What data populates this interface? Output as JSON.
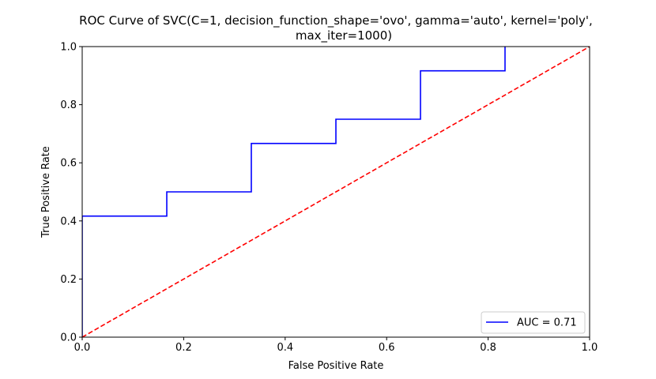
{
  "chart_data": {
    "type": "line",
    "title": [
      "ROC Curve of SVC(C=1, decision_function_shape='ovo', gamma='auto', kernel='poly',",
      "max_iter=1000)"
    ],
    "xlabel": "False Positive Rate",
    "ylabel": "True Positive Rate",
    "xlim": [
      0,
      1
    ],
    "ylim": [
      0,
      1
    ],
    "xticks": [
      0,
      0.2,
      0.4,
      0.6,
      0.8,
      1.0
    ],
    "yticks": [
      0,
      0.2,
      0.4,
      0.6,
      0.8,
      1.0
    ],
    "xtick_labels": [
      "0.0",
      "0.2",
      "0.4",
      "0.6",
      "0.8",
      "1.0"
    ],
    "ytick_labels": [
      "0.0",
      "0.2",
      "0.4",
      "0.6",
      "0.8",
      "1.0"
    ],
    "grid": false,
    "legend_position": "lower-right",
    "series": [
      {
        "name": "AUC = 0.71",
        "color": "#0000ff",
        "style": "solid",
        "x": [
          0,
          0,
          0.1667,
          0.1667,
          0.3333,
          0.3333,
          0.5,
          0.5,
          0.6667,
          0.6667,
          0.8333,
          0.8333
        ],
        "y": [
          0,
          0.4167,
          0.4167,
          0.5,
          0.5,
          0.6667,
          0.6667,
          0.75,
          0.75,
          0.9167,
          0.9167,
          1.0
        ]
      },
      {
        "name": "",
        "color": "#ff0000",
        "style": "dashed",
        "x": [
          0,
          1
        ],
        "y": [
          0,
          1
        ]
      }
    ]
  }
}
